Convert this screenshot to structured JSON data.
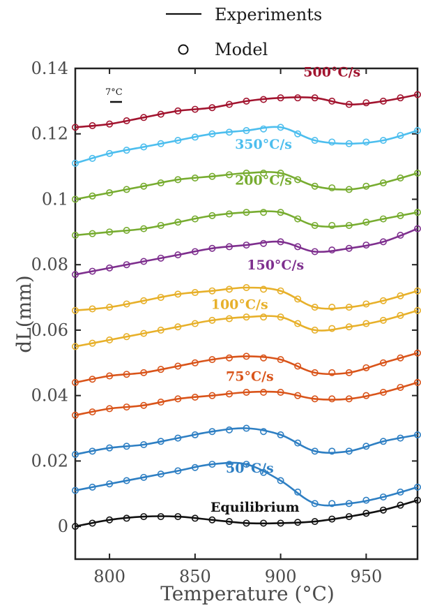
{
  "chart_data": {
    "type": "line",
    "xlabel": "Temperature (°C)",
    "ylabel": "dL(mm)",
    "xlim": [
      780,
      980
    ],
    "ylim": [
      -0.01,
      0.14
    ],
    "xticks": [
      800,
      850,
      900,
      950
    ],
    "yticks": [
      0,
      0.02,
      0.04,
      0.06,
      0.08,
      0.1,
      0.12,
      0.14
    ],
    "ytick_labels": [
      "0",
      "0.02",
      "0.04",
      "0.06",
      "0.08",
      "0.1",
      "0.12",
      "0.14"
    ],
    "grid": false,
    "legend": {
      "position": "top-center",
      "entries": [
        {
          "label": "Experiments",
          "marker": "line"
        },
        {
          "label": "Model",
          "marker": "circle"
        }
      ]
    },
    "scale_bar_label": "7°C",
    "labels": [
      {
        "text": "Equilibrium",
        "color": "#111111",
        "x": 885,
        "y": 0.0045
      },
      {
        "text": "50°C/s",
        "color": "#2e7fc3",
        "x": 882,
        "y": 0.0165
      },
      {
        "text": "75°C/s",
        "color": "#d9541a",
        "x": 882,
        "y": 0.0445
      },
      {
        "text": "100°C/s",
        "color": "#e7b02a",
        "x": 876,
        "y": 0.0665
      },
      {
        "text": "150°C/s",
        "color": "#7e2f8e",
        "x": 897,
        "y": 0.0785
      },
      {
        "text": "200°C/s",
        "color": "#77ac30",
        "x": 890,
        "y": 0.1045
      },
      {
        "text": "350°C/s",
        "color": "#4dbeee",
        "x": 890,
        "y": 0.1155
      },
      {
        "text": "500°C/s",
        "color": "#a2142f",
        "x": 930,
        "y": 0.1375
      }
    ],
    "series": [
      {
        "color": "#111111",
        "x": [
          780,
          800,
          820,
          840,
          860,
          880,
          900,
          920,
          940,
          960,
          980
        ],
        "y": [
          0.0,
          0.002,
          0.003,
          0.003,
          0.002,
          0.001,
          0.001,
          0.0015,
          0.003,
          0.005,
          0.008
        ]
      },
      {
        "color": "#2e7fc3",
        "x": [
          780,
          800,
          820,
          840,
          860,
          880,
          900,
          920,
          940,
          960,
          980
        ],
        "y": [
          0.011,
          0.013,
          0.015,
          0.017,
          0.019,
          0.019,
          0.014,
          0.007,
          0.007,
          0.009,
          0.012
        ]
      },
      {
        "color": "#2e7fc3",
        "x": [
          780,
          800,
          820,
          840,
          860,
          880,
          900,
          920,
          940,
          960,
          980
        ],
        "y": [
          0.022,
          0.024,
          0.025,
          0.027,
          0.029,
          0.03,
          0.028,
          0.023,
          0.023,
          0.026,
          0.028
        ]
      },
      {
        "color": "#d9541a",
        "x": [
          780,
          800,
          820,
          840,
          860,
          880,
          900,
          920,
          940,
          960,
          980
        ],
        "y": [
          0.034,
          0.036,
          0.037,
          0.039,
          0.04,
          0.041,
          0.041,
          0.039,
          0.039,
          0.041,
          0.044
        ]
      },
      {
        "color": "#d9541a",
        "x": [
          780,
          800,
          820,
          840,
          860,
          880,
          900,
          920,
          940,
          960,
          980
        ],
        "y": [
          0.044,
          0.046,
          0.047,
          0.049,
          0.051,
          0.052,
          0.051,
          0.047,
          0.047,
          0.05,
          0.053
        ]
      },
      {
        "color": "#e7b02a",
        "x": [
          780,
          800,
          820,
          840,
          860,
          880,
          900,
          920,
          940,
          960,
          980
        ],
        "y": [
          0.055,
          0.057,
          0.059,
          0.061,
          0.063,
          0.064,
          0.064,
          0.06,
          0.061,
          0.063,
          0.066
        ]
      },
      {
        "color": "#e7b02a",
        "x": [
          780,
          800,
          820,
          840,
          860,
          880,
          900,
          920,
          940,
          960,
          980
        ],
        "y": [
          0.066,
          0.067,
          0.069,
          0.071,
          0.072,
          0.073,
          0.072,
          0.067,
          0.067,
          0.069,
          0.072
        ]
      },
      {
        "color": "#7e2f8e",
        "x": [
          780,
          800,
          820,
          840,
          860,
          880,
          900,
          920,
          940,
          960,
          980
        ],
        "y": [
          0.077,
          0.079,
          0.081,
          0.083,
          0.085,
          0.086,
          0.087,
          0.084,
          0.085,
          0.087,
          0.091
        ]
      },
      {
        "color": "#77ac30",
        "x": [
          780,
          800,
          820,
          840,
          860,
          880,
          900,
          920,
          940,
          960,
          980
        ],
        "y": [
          0.089,
          0.09,
          0.091,
          0.093,
          0.095,
          0.096,
          0.096,
          0.092,
          0.092,
          0.094,
          0.096
        ]
      },
      {
        "color": "#77ac30",
        "x": [
          780,
          800,
          820,
          840,
          860,
          880,
          900,
          920,
          940,
          960,
          980
        ],
        "y": [
          0.1,
          0.102,
          0.104,
          0.106,
          0.107,
          0.108,
          0.108,
          0.104,
          0.103,
          0.105,
          0.108
        ]
      },
      {
        "color": "#4dbeee",
        "x": [
          780,
          800,
          820,
          840,
          860,
          880,
          900,
          920,
          940,
          960,
          980
        ],
        "y": [
          0.111,
          0.114,
          0.116,
          0.118,
          0.12,
          0.121,
          0.122,
          0.118,
          0.117,
          0.118,
          0.121
        ]
      },
      {
        "color": "#a2142f",
        "x": [
          780,
          800,
          820,
          840,
          860,
          880,
          900,
          920,
          940,
          960,
          980
        ],
        "y": [
          0.122,
          0.123,
          0.125,
          0.127,
          0.128,
          0.13,
          0.131,
          0.131,
          0.129,
          0.13,
          0.132
        ]
      }
    ]
  }
}
